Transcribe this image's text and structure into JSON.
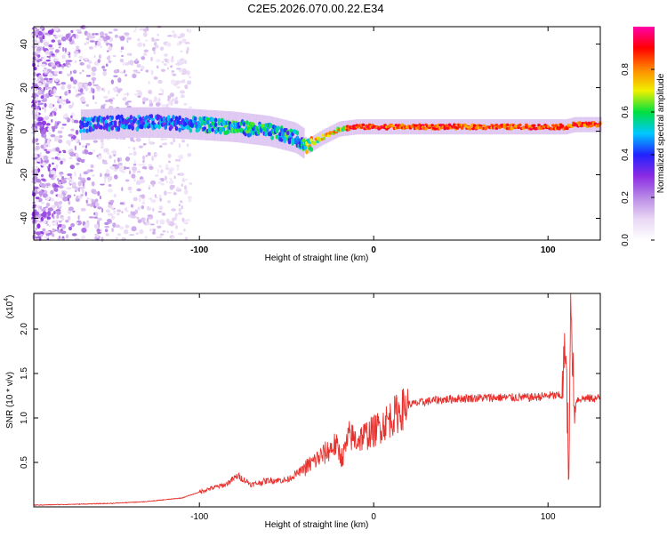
{
  "title": "C2E5.2026.070.00.22.E34",
  "chart_data": [
    {
      "type": "heatmap",
      "name": "spectrogram",
      "xlabel": "Height of straight line (km)",
      "ylabel": "Frequency (Hz)",
      "xlim": [
        -195,
        130
      ],
      "ylim": [
        -50,
        48
      ],
      "xticks": [
        -100,
        0,
        100
      ],
      "yticks": [
        -40,
        -20,
        0,
        20,
        40
      ],
      "colorbar": {
        "label": "Normalized spectral amplitude",
        "range": [
          0.0,
          1.0
        ],
        "ticks": [
          "0.0",
          "0.2",
          "0.4",
          "0.6",
          "0.8"
        ],
        "colors": [
          "#ffffff",
          "#e9d7f5",
          "#b98ae6",
          "#8a2be2",
          "#2222ff",
          "#00c8ff",
          "#00e040",
          "#f0f000",
          "#ff8800",
          "#ff0000",
          "#ff00aa"
        ]
      },
      "ridge": {
        "x": [
          -165,
          -140,
          -120,
          -100,
          -80,
          -60,
          -45,
          -38,
          -30,
          -20,
          -10,
          0,
          20,
          50,
          80,
          100,
          110,
          115,
          130
        ],
        "y": [
          3,
          4,
          4,
          3,
          2,
          0,
          -3,
          -7,
          -3,
          1,
          2,
          2,
          2,
          2,
          2,
          2,
          2,
          3,
          3
        ]
      }
    },
    {
      "type": "line",
      "name": "snr",
      "xlabel": "Height of straight line (km)",
      "ylabel": "SNR (10 * v/v)",
      "multiplier": "(x10",
      "multiplier_exp": "4",
      "xlim": [
        -195,
        130
      ],
      "ylim": [
        0,
        2.4
      ],
      "xticks": [
        -100,
        0,
        100
      ],
      "yticks": [
        "0.5",
        "1.0",
        "1.5",
        "2.0"
      ],
      "color": "#e8312d",
      "series": [
        {
          "name": "SNR",
          "x": [
            -195,
            -170,
            -150,
            -130,
            -110,
            -95,
            -85,
            -78,
            -70,
            -60,
            -50,
            -42,
            -35,
            -28,
            -22,
            -18,
            -14,
            -10,
            -5,
            0,
            10,
            20,
            35,
            50,
            70,
            90,
            100,
            108,
            110,
            112,
            113,
            115,
            120,
            130
          ],
          "y": [
            0.02,
            0.03,
            0.04,
            0.06,
            0.1,
            0.2,
            0.25,
            0.35,
            0.25,
            0.3,
            0.3,
            0.4,
            0.5,
            0.6,
            0.7,
            0.55,
            0.8,
            0.75,
            0.8,
            0.85,
            1.0,
            1.15,
            1.2,
            1.22,
            1.23,
            1.23,
            1.25,
            1.25,
            1.9,
            0.3,
            2.35,
            1.2,
            1.22,
            1.22
          ]
        }
      ]
    }
  ]
}
